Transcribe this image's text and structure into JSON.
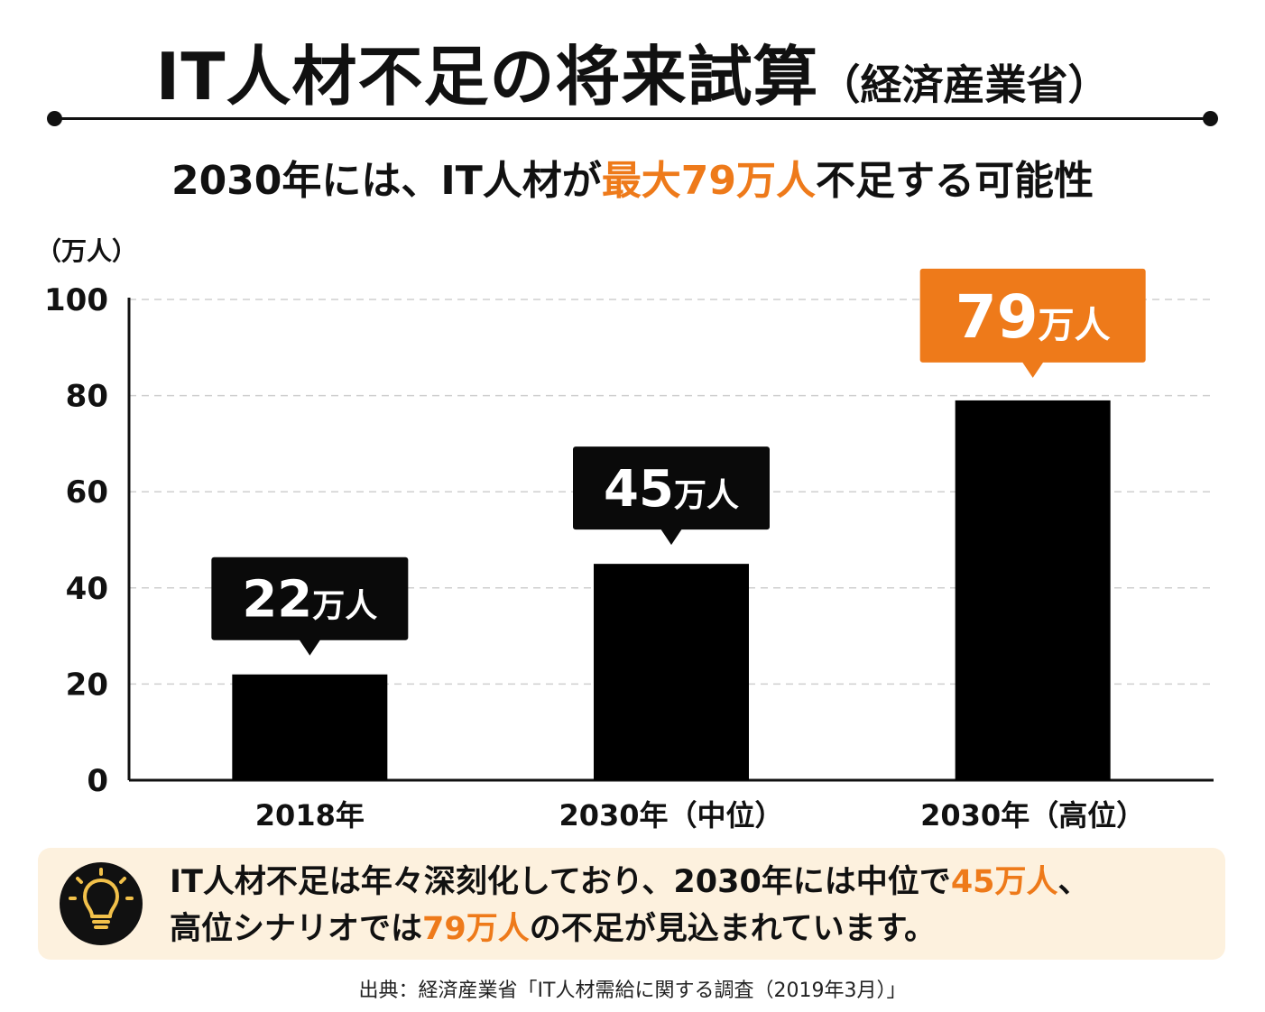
{
  "header": {
    "title": "IT人材不足の将来試算",
    "title_note": "（経済産業省）",
    "subtitle_before": "2030年には、IT人材が",
    "subtitle_highlight": "最大79万人",
    "subtitle_after": "不足する可能性"
  },
  "chart_data": {
    "type": "bar",
    "y_unit": "（万人）",
    "categories": [
      "2018年",
      "2030年（中位）",
      "2030年（高位）"
    ],
    "values": [
      22,
      45,
      79
    ],
    "callouts": [
      {
        "number": "22",
        "unit": "万人",
        "style": "black"
      },
      {
        "number": "45",
        "unit": "万人",
        "style": "black"
      },
      {
        "number": "79",
        "unit": "万人",
        "style": "orange"
      }
    ],
    "ylim": [
      0,
      100
    ],
    "yticks": [
      0,
      20,
      40,
      60,
      80,
      100
    ],
    "grid": true,
    "bar_color": "#000000",
    "callout_colors": {
      "black": "#0a0a0a",
      "orange": "#ee7a1a"
    }
  },
  "note": {
    "icon": "lightbulb-icon",
    "line1_a": "IT人材不足は年々深刻化しており、2030年には中位で",
    "line1_hl": "45万人",
    "line1_b": "、",
    "line2_a": "高位シナリオでは",
    "line2_hl": "79万人",
    "line2_b": "の不足が見込まれています。"
  },
  "source": "出典：経済産業省「IT人材需給に関する調査（2019年3月）」",
  "colors": {
    "accent": "#ee7a1a",
    "note_bg": "#fdf1de"
  }
}
